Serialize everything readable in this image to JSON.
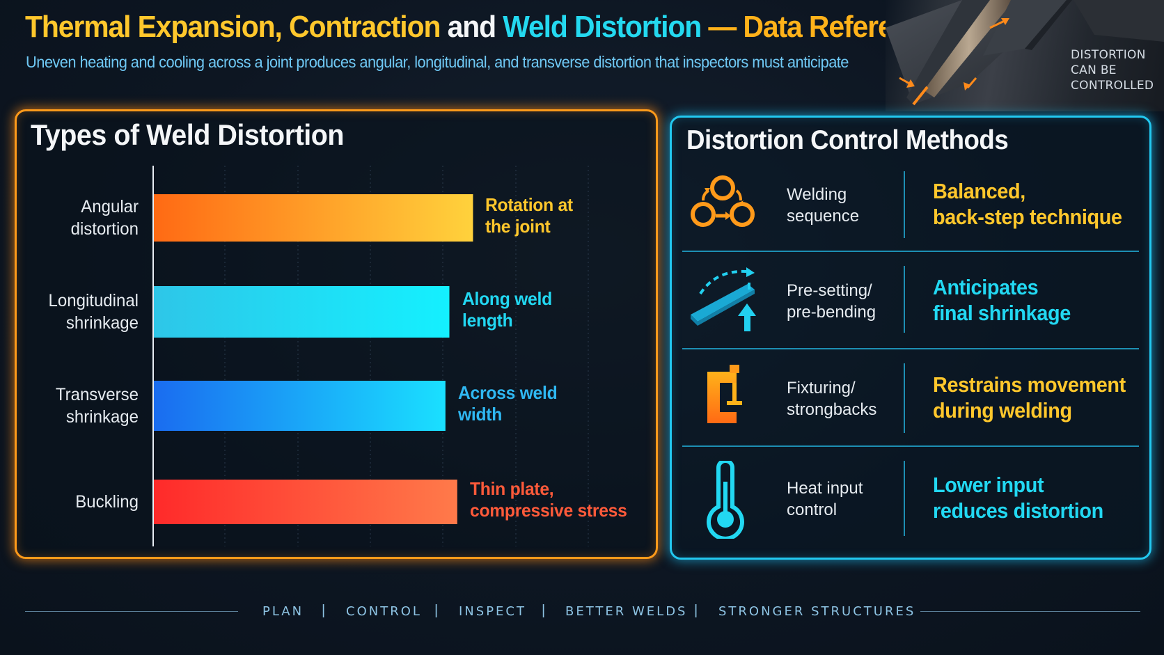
{
  "header": {
    "title_parts": [
      "Thermal Expansion, Contraction",
      " and ",
      "Weld Distortion",
      " — Data Reference"
    ],
    "subtitle": "Uneven heating and cooling across a joint produces angular, longitudinal, and transverse distortion that inspectors must anticipate"
  },
  "hero": {
    "lines": [
      "DISTORTION",
      "CAN BE",
      "CONTROLLED"
    ]
  },
  "types_panel": {
    "title": "Types of Weld Distortion"
  },
  "chart_data": {
    "type": "bar",
    "orientation": "horizontal",
    "title": "Types of Weld Distortion",
    "categories": [
      "Angular\ndistortion",
      "Longitudinal\nshrinkage",
      "Transverse\nshrinkage",
      "Buckling"
    ],
    "values": [
      0.81,
      0.75,
      0.74,
      0.77
    ],
    "value_scale": "relative bar length (0–1), no printed axis",
    "annotations": [
      "Rotation at\nthe joint",
      "Along weld\nlength",
      "Across weld\nwidth",
      "Thin plate,\ncompressive stress"
    ],
    "colors": [
      [
        "#ff6a14",
        "#ffd23c"
      ],
      [
        "#2ec6e8",
        "#14f0ff"
      ],
      [
        "#1a6cf0",
        "#1ae0ff"
      ],
      [
        "#ff2a2a",
        "#ff7a4a"
      ]
    ],
    "annotation_colors": [
      "#ffc72c",
      "#22d8f2",
      "#2fb8f2",
      "#ff5a3a"
    ],
    "grid": true,
    "legend": "none"
  },
  "control_panel": {
    "title": "Distortion Control Methods",
    "rows": [
      {
        "icon": "sequence-icon",
        "name": "Welding\nsequence",
        "desc": "Balanced,\nback-step technique",
        "color": "#ffc72c"
      },
      {
        "icon": "pre-bend-icon",
        "name": "Pre-setting/\npre-bending",
        "desc": "Anticipates\nfinal shrinkage",
        "color": "#22d8f2"
      },
      {
        "icon": "clamp-icon",
        "name": "Fixturing/\nstrongbacks",
        "desc": "Restrains movement\nduring welding",
        "color": "#ffc72c"
      },
      {
        "icon": "thermometer-icon",
        "name": "Heat input\ncontrol",
        "desc": "Lower input\nreduces distortion",
        "color": "#22d8f2"
      }
    ]
  },
  "footer": {
    "items": [
      "PLAN",
      "CONTROL",
      "INSPECT",
      "BETTER WELDS",
      "STRONGER STRUCTURES"
    ],
    "separator": "|"
  }
}
